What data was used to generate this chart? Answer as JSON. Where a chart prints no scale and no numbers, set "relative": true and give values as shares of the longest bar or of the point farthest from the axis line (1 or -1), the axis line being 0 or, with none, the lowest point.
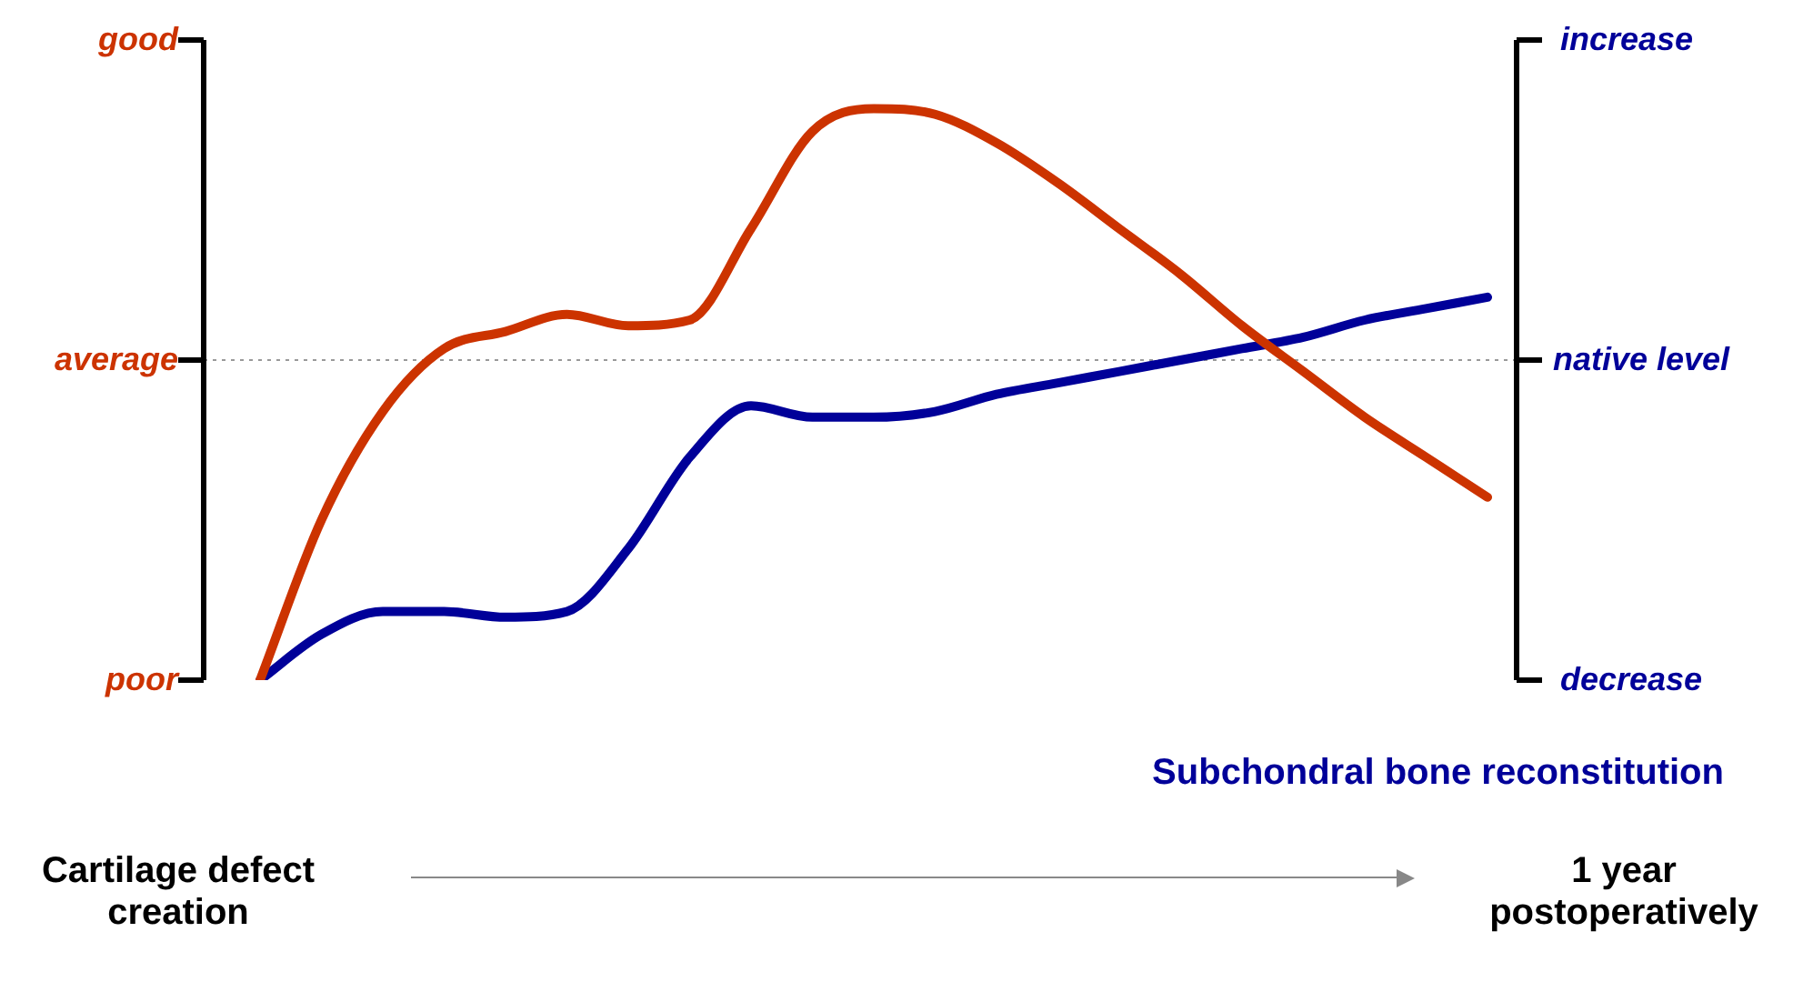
{
  "chart_data": {
    "type": "line",
    "relative": true,
    "categories": [
      null,
      null,
      null,
      null,
      null,
      null,
      null,
      null,
      null,
      null,
      null,
      null,
      null,
      null,
      null,
      null,
      null,
      null,
      null,
      null,
      null
    ],
    "series": [
      {
        "color": "#cc3300",
        "values": [
          0,
          0.28,
          0.47,
          0.58,
          0.61,
          0.64,
          0.62,
          0.63,
          0.79,
          0.96,
          1,
          0.99,
          0.94,
          0.87,
          0.79,
          0.71,
          0.62,
          0.54,
          0.46,
          0.39,
          0.32
        ]
      },
      {
        "name": "Subchondral bone reconstitution",
        "color": "#000099",
        "values": [
          0,
          0.08,
          0.12,
          0.12,
          0.11,
          0.12,
          0.23,
          0.39,
          0.48,
          0.46,
          0.46,
          0.47,
          0.5,
          0.52,
          0.54,
          0.56,
          0.58,
          0.6,
          0.63,
          0.65,
          0.67
        ]
      }
    ],
    "ref_lines": [
      {
        "axis": "y",
        "value": 0.56,
        "label": "average",
        "color": "#999999",
        "line_style": "dotted"
      }
    ],
    "annotations": [
      "good",
      "poor",
      "increase",
      "native level",
      "decrease",
      "Cartilage defect creation",
      "1 year postoperatively"
    ],
    "legend": false,
    "marker": "none",
    "line_style": "solid"
  }
}
